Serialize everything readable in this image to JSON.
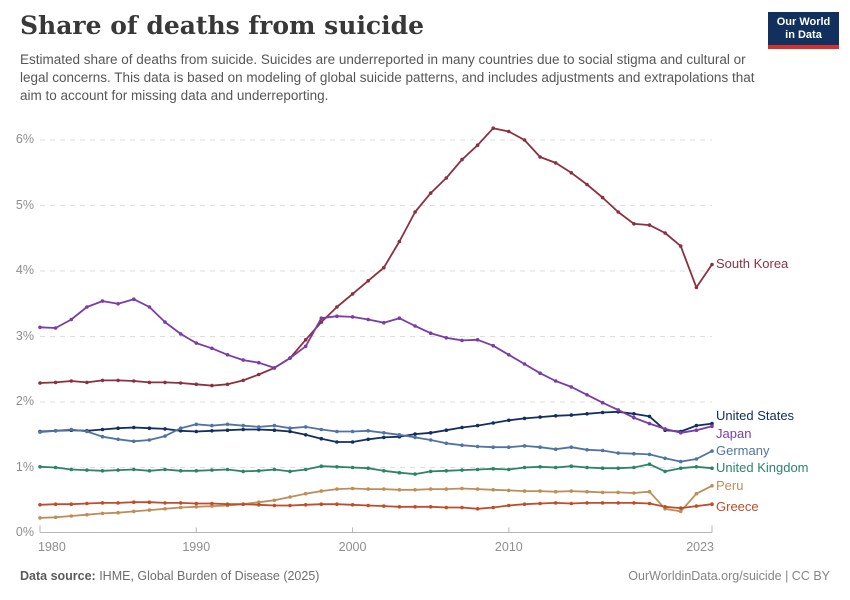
{
  "header": {
    "title": "Share of deaths from suicide",
    "subtitle": "Estimated share of deaths from suicide. Suicides are underreported in many countries due to social stigma and cultural or legal concerns. This data is based on modeling of global suicide patterns, and includes adjustments and extrapolations that aim to account for missing data and underreporting.",
    "logo": {
      "line1": "Our World",
      "line2": "in Data",
      "bg": "#12305E",
      "accent": "#D6302C"
    }
  },
  "chart_data": {
    "type": "line",
    "title": "Share of deaths from suicide",
    "xlabel": "",
    "ylabel": "",
    "x": [
      1980,
      1981,
      1982,
      1983,
      1984,
      1985,
      1986,
      1987,
      1988,
      1989,
      1990,
      1991,
      1992,
      1993,
      1994,
      1995,
      1996,
      1997,
      1998,
      1999,
      2000,
      2001,
      2002,
      2003,
      2004,
      2005,
      2006,
      2007,
      2008,
      2009,
      2010,
      2011,
      2012,
      2013,
      2014,
      2015,
      2016,
      2017,
      2018,
      2019,
      2020,
      2021,
      2022,
      2023
    ],
    "xticks": [
      "1980",
      "1990",
      "2000",
      "2010",
      "2023"
    ],
    "yticks": [
      "0%",
      "1%",
      "2%",
      "3%",
      "4%",
      "5%",
      "6%"
    ],
    "ylim": [
      0,
      6.5
    ],
    "grid": "horizontal-dashed",
    "legend_position": "end-of-line-labels",
    "series": [
      {
        "name": "South Korea",
        "color": "#8B3040",
        "values": [
          2.29,
          2.3,
          2.32,
          2.3,
          2.33,
          2.33,
          2.32,
          2.3,
          2.3,
          2.29,
          2.27,
          2.25,
          2.27,
          2.33,
          2.42,
          2.52,
          2.67,
          2.95,
          3.22,
          3.45,
          3.65,
          3.85,
          4.05,
          4.45,
          4.9,
          5.19,
          5.42,
          5.7,
          5.92,
          6.18,
          6.13,
          6.0,
          5.74,
          5.65,
          5.5,
          5.32,
          5.12,
          4.9,
          4.72,
          4.7,
          4.58,
          4.38,
          3.75,
          4.1
        ]
      },
      {
        "name": "United States",
        "color": "#152E60",
        "values": [
          1.55,
          1.56,
          1.57,
          1.56,
          1.58,
          1.6,
          1.61,
          1.6,
          1.59,
          1.56,
          1.55,
          1.56,
          1.57,
          1.58,
          1.58,
          1.57,
          1.55,
          1.5,
          1.44,
          1.39,
          1.39,
          1.43,
          1.46,
          1.47,
          1.51,
          1.53,
          1.57,
          1.61,
          1.64,
          1.68,
          1.72,
          1.75,
          1.77,
          1.79,
          1.8,
          1.82,
          1.84,
          1.85,
          1.82,
          1.78,
          1.57,
          1.55,
          1.64,
          1.67
        ]
      },
      {
        "name": "Japan",
        "color": "#7A3DA5",
        "values": [
          3.14,
          3.13,
          3.26,
          3.45,
          3.54,
          3.5,
          3.57,
          3.45,
          3.22,
          3.04,
          2.9,
          2.82,
          2.72,
          2.64,
          2.6,
          2.52,
          2.67,
          2.85,
          3.28,
          3.31,
          3.3,
          3.26,
          3.21,
          3.28,
          3.16,
          3.05,
          2.98,
          2.94,
          2.95,
          2.86,
          2.72,
          2.58,
          2.44,
          2.32,
          2.23,
          2.11,
          1.99,
          1.88,
          1.76,
          1.67,
          1.59,
          1.53,
          1.57,
          1.63
        ]
      },
      {
        "name": "Germany",
        "color": "#51739F",
        "values": [
          1.54,
          1.56,
          1.58,
          1.55,
          1.47,
          1.43,
          1.4,
          1.42,
          1.48,
          1.6,
          1.66,
          1.64,
          1.66,
          1.64,
          1.62,
          1.64,
          1.6,
          1.62,
          1.58,
          1.55,
          1.55,
          1.56,
          1.53,
          1.5,
          1.46,
          1.42,
          1.37,
          1.34,
          1.32,
          1.31,
          1.31,
          1.33,
          1.31,
          1.28,
          1.31,
          1.27,
          1.26,
          1.22,
          1.21,
          1.2,
          1.14,
          1.09,
          1.13,
          1.25
        ]
      },
      {
        "name": "United Kingdom",
        "color": "#2C8465",
        "values": [
          1.01,
          1.0,
          0.97,
          0.96,
          0.95,
          0.96,
          0.97,
          0.95,
          0.97,
          0.95,
          0.95,
          0.96,
          0.97,
          0.94,
          0.95,
          0.97,
          0.94,
          0.97,
          1.02,
          1.01,
          1.0,
          0.99,
          0.95,
          0.92,
          0.9,
          0.94,
          0.95,
          0.96,
          0.97,
          0.98,
          0.97,
          1.0,
          1.01,
          1.0,
          1.02,
          1.0,
          0.99,
          0.99,
          1.0,
          1.05,
          0.94,
          0.99,
          1.01,
          0.99
        ]
      },
      {
        "name": "Peru",
        "color": "#BC8E5A",
        "values": [
          0.23,
          0.24,
          0.26,
          0.28,
          0.3,
          0.31,
          0.33,
          0.35,
          0.37,
          0.39,
          0.4,
          0.41,
          0.42,
          0.44,
          0.47,
          0.5,
          0.55,
          0.6,
          0.64,
          0.67,
          0.68,
          0.67,
          0.67,
          0.66,
          0.66,
          0.67,
          0.67,
          0.68,
          0.67,
          0.66,
          0.65,
          0.64,
          0.64,
          0.63,
          0.64,
          0.63,
          0.62,
          0.62,
          0.61,
          0.63,
          0.37,
          0.33,
          0.6,
          0.72
        ]
      },
      {
        "name": "Greece",
        "color": "#BE4E29",
        "values": [
          0.43,
          0.44,
          0.44,
          0.45,
          0.46,
          0.46,
          0.47,
          0.47,
          0.46,
          0.46,
          0.45,
          0.45,
          0.44,
          0.44,
          0.43,
          0.42,
          0.42,
          0.43,
          0.44,
          0.44,
          0.43,
          0.42,
          0.41,
          0.4,
          0.4,
          0.4,
          0.39,
          0.39,
          0.37,
          0.39,
          0.42,
          0.44,
          0.45,
          0.46,
          0.45,
          0.46,
          0.46,
          0.46,
          0.46,
          0.45,
          0.4,
          0.38,
          0.41,
          0.44
        ]
      }
    ]
  },
  "colors": {
    "gridline": "#DEDEDE",
    "axis": "#B5B5B5",
    "tick_label": "#8e8e8e"
  },
  "footer": {
    "source_label": "Data source:",
    "source_text": " IHME, Global Burden of Disease (2025)",
    "credit": "OurWorldinData.org/suicide | CC BY"
  }
}
